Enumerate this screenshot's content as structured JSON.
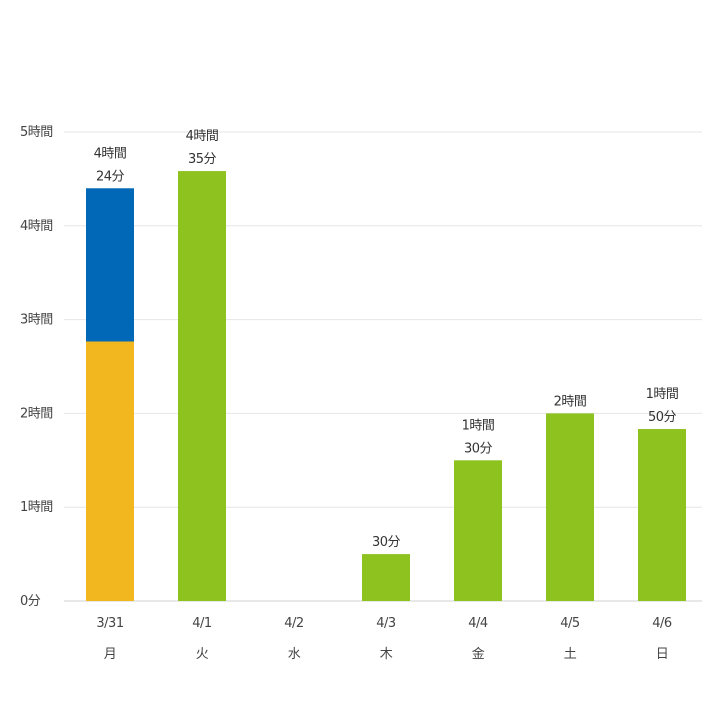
{
  "chart_data": {
    "type": "bar",
    "stacked": true,
    "grid": true,
    "ylim": [
      0,
      300
    ],
    "y_unit": "minutes",
    "yticks": [
      {
        "value": 0,
        "label": "0分"
      },
      {
        "value": 60,
        "label": "1時間"
      },
      {
        "value": 120,
        "label": "2時間"
      },
      {
        "value": 180,
        "label": "3時間"
      },
      {
        "value": 240,
        "label": "4時間"
      },
      {
        "value": 300,
        "label": "5時間"
      }
    ],
    "categories": [
      {
        "date": "3/31",
        "day": "月"
      },
      {
        "date": "4/1",
        "day": "火"
      },
      {
        "date": "4/2",
        "day": "水"
      },
      {
        "date": "4/3",
        "day": "木"
      },
      {
        "date": "4/4",
        "day": "金"
      },
      {
        "date": "4/5",
        "day": "土"
      },
      {
        "date": "4/6",
        "day": "日"
      }
    ],
    "series": [
      {
        "color": "#f2b71f",
        "values": [
          166,
          0,
          0,
          0,
          0,
          0,
          0
        ]
      },
      {
        "color": "#0068b7",
        "values": [
          98,
          0,
          0,
          0,
          0,
          0,
          0
        ]
      },
      {
        "color": "#8dc21f",
        "values": [
          0,
          275,
          0,
          30,
          90,
          120,
          110
        ]
      }
    ],
    "data_labels": [
      [
        "4時間",
        "24分"
      ],
      [
        "4時間",
        "35分"
      ],
      [],
      [
        "30分"
      ],
      [
        "1時間",
        "30分"
      ],
      [
        "2時間"
      ],
      [
        "1時間",
        "50分"
      ]
    ]
  }
}
